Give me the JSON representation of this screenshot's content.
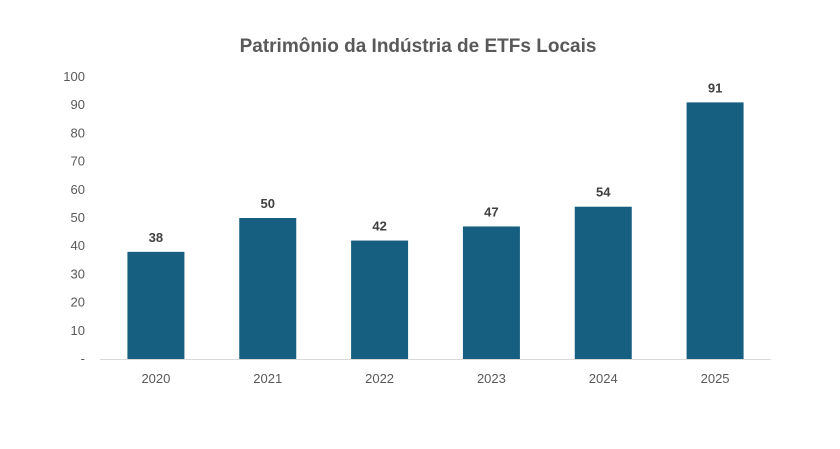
{
  "chart_data": {
    "type": "bar",
    "title": "Patrimônio da Indústria de ETFs Locais",
    "categories": [
      "2020",
      "2021",
      "2022",
      "2023",
      "2024",
      "2025"
    ],
    "values": [
      38,
      50,
      42,
      47,
      54,
      91
    ],
    "data_labels": [
      "38",
      "50",
      "42",
      "47",
      "54",
      "91"
    ],
    "ylim": [
      0,
      100
    ],
    "yticks": [
      0,
      10,
      20,
      30,
      40,
      50,
      60,
      70,
      80,
      90,
      100
    ],
    "ytick_labels": [
      "-",
      "10",
      "20",
      "30",
      "40",
      "50",
      "60",
      "70",
      "80",
      "90",
      "100"
    ],
    "xlabel": "",
    "ylabel": "",
    "grid": false,
    "legend": "none",
    "bar_color": "#165f80",
    "axis_color": "#d9d9d9"
  }
}
